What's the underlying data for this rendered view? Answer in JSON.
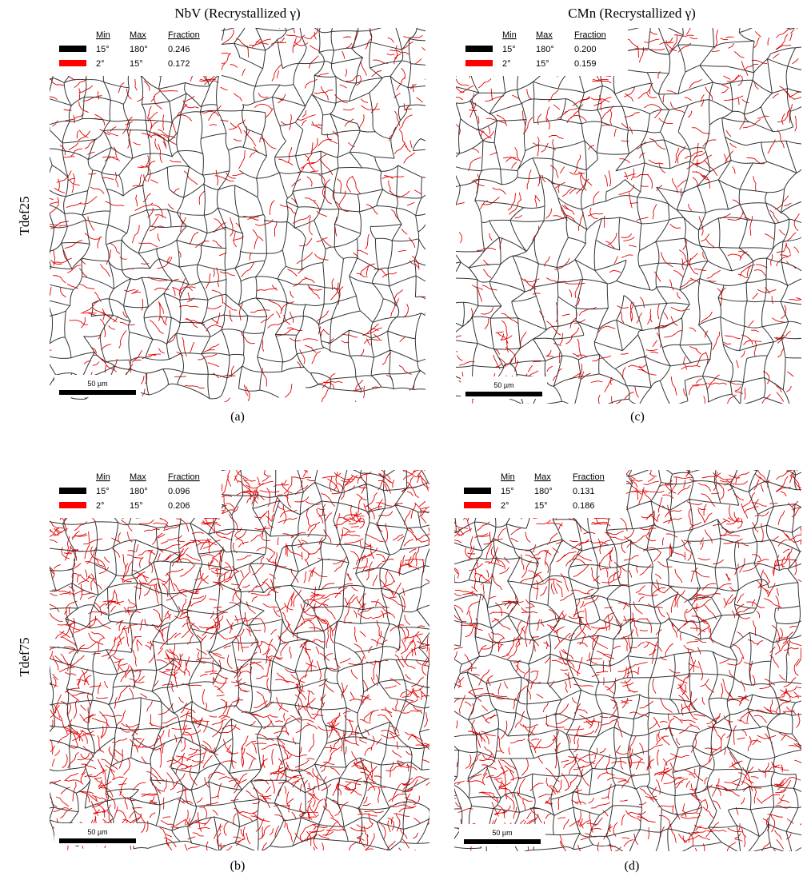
{
  "columns": [
    {
      "title": "NbV (Recrystallized γ)"
    },
    {
      "title": "CMn (Recrystallized γ)"
    }
  ],
  "rows": [
    {
      "label": "Tdef25"
    },
    {
      "label": "Tdef75"
    }
  ],
  "panels": [
    {
      "caption": "(a)",
      "scale_bar": "50 µm",
      "legend": {
        "headers": [
          "Min",
          "Max",
          "Fraction"
        ],
        "rows": [
          [
            "15°",
            "180°",
            "0.246"
          ],
          [
            "2°",
            "15°",
            "0.172"
          ]
        ]
      }
    },
    {
      "caption": "(b)",
      "scale_bar": "50 µm",
      "legend": {
        "headers": [
          "Min",
          "Max",
          "Fraction"
        ],
        "rows": [
          [
            "15°",
            "180°",
            "0.096"
          ],
          [
            "2°",
            "15°",
            "0.206"
          ]
        ]
      }
    },
    {
      "caption": "(c)",
      "scale_bar": "50 µm",
      "legend": {
        "headers": [
          "Min",
          "Max",
          "Fraction"
        ],
        "rows": [
          [
            "15°",
            "180°",
            "0.200"
          ],
          [
            "2°",
            "15°",
            "0.159"
          ]
        ]
      }
    },
    {
      "caption": "(d)",
      "scale_bar": "50 µm",
      "legend": {
        "headers": [
          "Min",
          "Max",
          "Fraction"
        ],
        "rows": [
          [
            "15°",
            "180°",
            "0.131"
          ],
          [
            "2°",
            "15°",
            "0.186"
          ]
        ]
      }
    }
  ]
}
